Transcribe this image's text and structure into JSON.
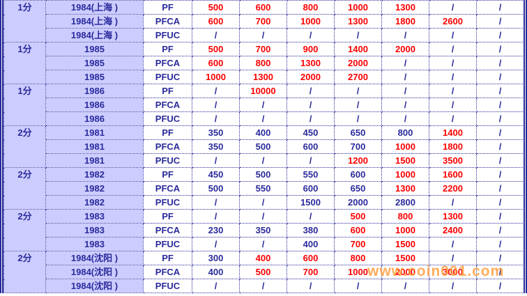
{
  "chart_data": {
    "type": "table",
    "description_note": "Coin proof-set price table; columns after grade are unlabeled price tiers",
    "groups": [
      {
        "denomination": "1分",
        "year": "1984(上海 )",
        "rows": [
          {
            "grade": "PF",
            "values": [
              "500",
              "600",
              "800",
              "1000",
              "1300",
              "/",
              "/"
            ],
            "colors": [
              "red",
              "red",
              "red",
              "red",
              "red",
              "blue",
              "blue"
            ]
          },
          {
            "grade": "PFCA",
            "values": [
              "600",
              "700",
              "1000",
              "1300",
              "1800",
              "2600",
              "/"
            ],
            "colors": [
              "red",
              "red",
              "red",
              "red",
              "red",
              "red",
              "blue"
            ]
          },
          {
            "grade": "PFUC",
            "values": [
              "/",
              "/",
              "/",
              "/",
              "/",
              "/",
              "/"
            ],
            "colors": [
              "blue",
              "blue",
              "blue",
              "blue",
              "blue",
              "blue",
              "blue"
            ]
          }
        ]
      },
      {
        "denomination": "1分",
        "year": "1985",
        "rows": [
          {
            "grade": "PF",
            "values": [
              "500",
              "700",
              "900",
              "1400",
              "2000",
              "/",
              "/"
            ],
            "colors": [
              "red",
              "red",
              "red",
              "red",
              "red",
              "blue",
              "blue"
            ]
          },
          {
            "grade": "PFCA",
            "values": [
              "600",
              "800",
              "1300",
              "2000",
              "/",
              "/",
              "/"
            ],
            "colors": [
              "red",
              "red",
              "red",
              "red",
              "blue",
              "blue",
              "blue"
            ]
          },
          {
            "grade": "PFUC",
            "values": [
              "1000",
              "1300",
              "2000",
              "2700",
              "/",
              "/",
              "/"
            ],
            "colors": [
              "red",
              "red",
              "red",
              "red",
              "blue",
              "blue",
              "blue"
            ]
          }
        ]
      },
      {
        "denomination": "1分",
        "year": "1986",
        "rows": [
          {
            "grade": "PF",
            "values": [
              "/",
              "10000",
              "/",
              "/",
              "/",
              "/",
              "/"
            ],
            "colors": [
              "blue",
              "red",
              "blue",
              "blue",
              "blue",
              "blue",
              "blue"
            ]
          },
          {
            "grade": "PFCA",
            "values": [
              "/",
              "/",
              "/",
              "/",
              "/",
              "/",
              "/"
            ],
            "colors": [
              "blue",
              "blue",
              "blue",
              "blue",
              "blue",
              "blue",
              "blue"
            ]
          },
          {
            "grade": "PFUC",
            "values": [
              "/",
              "/",
              "/",
              "/",
              "/",
              "/",
              "/"
            ],
            "colors": [
              "blue",
              "blue",
              "blue",
              "blue",
              "blue",
              "blue",
              "blue"
            ]
          }
        ]
      },
      {
        "denomination": "2分",
        "year": "1981",
        "rows": [
          {
            "grade": "PF",
            "values": [
              "350",
              "400",
              "450",
              "650",
              "800",
              "1400",
              "/"
            ],
            "colors": [
              "blue",
              "blue",
              "blue",
              "blue",
              "blue",
              "red",
              "blue"
            ]
          },
          {
            "grade": "PFCA",
            "values": [
              "350",
              "500",
              "600",
              "700",
              "1000",
              "1800",
              "/"
            ],
            "colors": [
              "blue",
              "blue",
              "blue",
              "blue",
              "red",
              "red",
              "blue"
            ]
          },
          {
            "grade": "PFUC",
            "values": [
              "/",
              "/",
              "/",
              "1200",
              "1500",
              "3500",
              "/"
            ],
            "colors": [
              "blue",
              "blue",
              "blue",
              "red",
              "red",
              "red",
              "blue"
            ]
          }
        ]
      },
      {
        "denomination": "2分",
        "year": "1982",
        "rows": [
          {
            "grade": "PF",
            "values": [
              "450",
              "500",
              "550",
              "600",
              "1000",
              "1600",
              "/"
            ],
            "colors": [
              "blue",
              "blue",
              "blue",
              "blue",
              "red",
              "red",
              "blue"
            ]
          },
          {
            "grade": "PFCA",
            "values": [
              "500",
              "550",
              "600",
              "650",
              "1300",
              "2200",
              "/"
            ],
            "colors": [
              "blue",
              "blue",
              "blue",
              "blue",
              "red",
              "red",
              "blue"
            ]
          },
          {
            "grade": "PFUC",
            "values": [
              "/",
              "/",
              "1500",
              "2000",
              "2800",
              "/",
              "/"
            ],
            "colors": [
              "blue",
              "blue",
              "blue",
              "blue",
              "blue",
              "blue",
              "blue"
            ]
          }
        ]
      },
      {
        "denomination": "2分",
        "year": "1983",
        "rows": [
          {
            "grade": "PF",
            "values": [
              "/",
              "/",
              "/",
              "500",
              "800",
              "1300",
              "/"
            ],
            "colors": [
              "blue",
              "blue",
              "blue",
              "red",
              "red",
              "red",
              "blue"
            ]
          },
          {
            "grade": "PFCA",
            "values": [
              "230",
              "350",
              "380",
              "600",
              "1000",
              "2400",
              "/"
            ],
            "colors": [
              "blue",
              "blue",
              "blue",
              "red",
              "red",
              "red",
              "blue"
            ]
          },
          {
            "grade": "PFUC",
            "values": [
              "/",
              "/",
              "400",
              "700",
              "1500",
              "/",
              "/"
            ],
            "colors": [
              "blue",
              "blue",
              "blue",
              "red",
              "red",
              "blue",
              "blue"
            ]
          }
        ]
      },
      {
        "denomination": "2分",
        "year": "1984(沈阳 )",
        "rows": [
          {
            "grade": "PF",
            "values": [
              "300",
              "400",
              "600",
              "800",
              "1500",
              "/",
              "/"
            ],
            "colors": [
              "blue",
              "red",
              "red",
              "red",
              "red",
              "blue",
              "blue"
            ]
          },
          {
            "grade": "PFCA",
            "values": [
              "400",
              "500",
              "700",
              "1000",
              "2000",
              "3000",
              "/"
            ],
            "colors": [
              "blue",
              "red",
              "red",
              "red",
              "red",
              "red",
              "blue"
            ]
          },
          {
            "grade": "PFUC",
            "values": [
              "/",
              "/",
              "/",
              "/",
              "/",
              "/",
              "/"
            ],
            "colors": [
              "blue",
              "blue",
              "blue",
              "blue",
              "blue",
              "blue",
              "blue"
            ]
          }
        ]
      }
    ]
  },
  "watermark": {
    "text": "www.coin001.com",
    "color": "#ff9933"
  },
  "colors": {
    "value_red": "#fb0000",
    "value_blue": "#2a2a9c",
    "border_navy": "#2a2a9c",
    "label_background": "#ccccff",
    "cell_background": "#ffffff"
  }
}
